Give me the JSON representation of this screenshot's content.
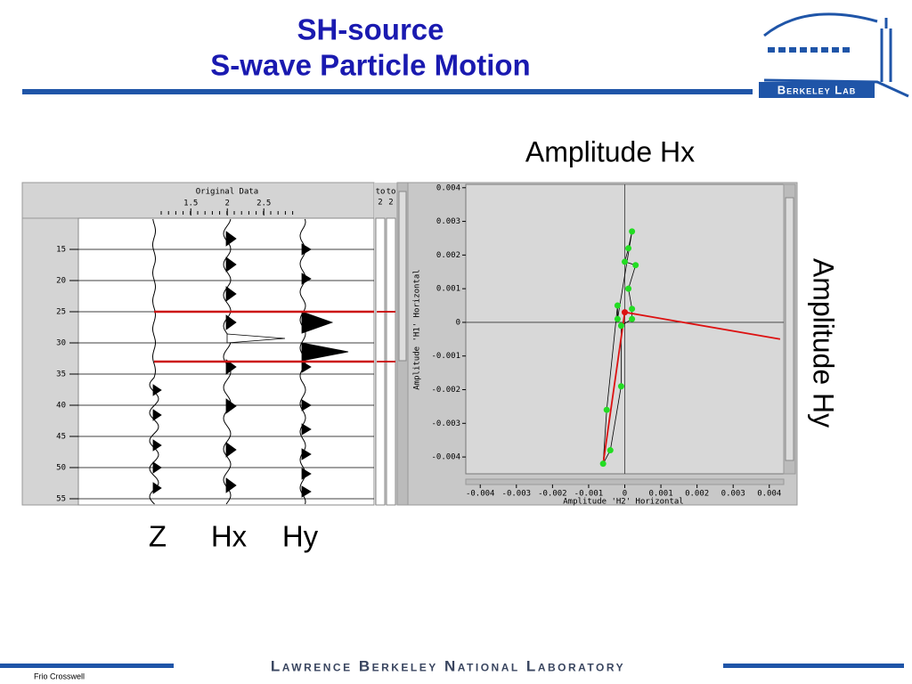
{
  "header": {
    "title_line1": "SH-source",
    "title_line2": "S-wave Particle Motion",
    "logo": "Berkeley Lab"
  },
  "labels": {
    "amplitude_hx": "Amplitude Hx",
    "amplitude_hy": "Amplitude Hy",
    "components": [
      "Z",
      "Hx",
      "Hy"
    ]
  },
  "seismic_panel": {
    "title": "Original Data",
    "scale_lim": [
      -0.04,
      4.01
    ],
    "scale_ticks": [
      1.5,
      2,
      2.5
    ],
    "depth_lim": [
      10,
      56
    ],
    "depth_ticks": [
      15,
      20,
      25,
      30,
      35,
      40,
      45,
      50,
      55
    ],
    "window": [
      25,
      33
    ],
    "side_labels": [
      "to",
      "to",
      "2",
      "2"
    ]
  },
  "hodogram": {
    "xlabel": "Amplitude 'H2' Horizontal",
    "ylabel": "Amplitude 'H1' Horizontal",
    "xlim": [
      -0.0044,
      0.0044
    ],
    "ylim": [
      -0.0045,
      0.0041
    ],
    "xticks": [
      -0.004,
      -0.003,
      -0.002,
      -0.001,
      0,
      0.001,
      0.002,
      0.003,
      0.004
    ],
    "yticks": [
      0.004,
      0.003,
      0.002,
      0.001,
      0,
      -0.001,
      -0.002,
      -0.003,
      -0.004
    ],
    "points": {
      "x": [
        0.0002,
        0.0001,
        0,
        0.0003,
        0.0001,
        0.0002,
        0.0002,
        -0.0001,
        -0.0001,
        -0.0004,
        -0.0006,
        -0.0005,
        -0.0002,
        -0.0002
      ],
      "y": [
        0.0027,
        0.0022,
        0.0018,
        0.0017,
        0.001,
        0.0004,
        0.0001,
        -0.0001,
        -0.0019,
        -0.0038,
        -0.0042,
        -0.0026,
        0.0005,
        0.0001
      ],
      "color": "#22dd22"
    },
    "direction": {
      "x": [
        -0.0006,
        0,
        0.0043
      ],
      "y": [
        -0.0042,
        0.0003,
        -0.0005
      ],
      "color": "#dd1111"
    }
  },
  "footer": {
    "note": "Frio Crosswell",
    "lab": "Lawrence Berkeley National Laboratory"
  }
}
